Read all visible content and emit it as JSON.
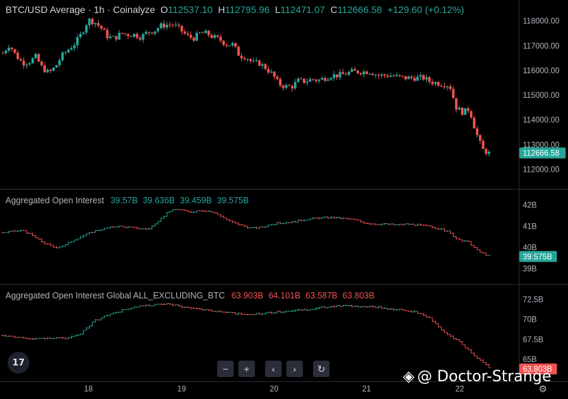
{
  "header": {
    "symbol": "BTC/USD Average · 1h · Coinalyze",
    "open_label": "O",
    "open": "112537.10",
    "high_label": "H",
    "high": "112795.96",
    "low_label": "L",
    "low": "112471.07",
    "close_label": "C",
    "close": "112666.58",
    "change": "+129.60 (+0.12%)"
  },
  "panel2": {
    "title": "Aggregated Open Interest",
    "values": [
      "39.57B",
      "39.636B",
      "39.459B",
      "39.575B"
    ]
  },
  "panel3": {
    "title": "Aggregated Open Interest Global ALL_EXCLUDING_BTC",
    "values": [
      "63.903B",
      "64.101B",
      "63.587B",
      "63.803B"
    ]
  },
  "watermark": "@ Doctor-Strange",
  "logo_text": "17",
  "nav": {
    "zoom_out": "−",
    "zoom_in": "+",
    "left": "‹",
    "right": "›",
    "reset": "↻"
  },
  "colors": {
    "up": "#26a69a",
    "down": "#ef5350",
    "background": "#000000",
    "grid_sep": "#2a2e39"
  },
  "chart_data": [
    {
      "type": "candlestick",
      "title": "BTC/USD Average · 1h · Coinalyze",
      "x_ticks": [
        "18",
        "19",
        "20",
        "21",
        "22"
      ],
      "y_ticks": [
        "118000.00",
        "117000.00",
        "116000.00",
        "115000.00",
        "114000.00",
        "113000.00",
        "112000.00"
      ],
      "ylim": [
        111600,
        118350
      ],
      "last_price": "112666.58",
      "path": [
        116700,
        117050,
        116600,
        116300,
        116350,
        116550,
        116100,
        115900,
        116150,
        116600,
        116850,
        117100,
        117500,
        118050,
        117950,
        117700,
        117350,
        117300,
        117500,
        117450,
        117450,
        117350,
        117550,
        117600,
        117800,
        117850,
        117850,
        117650,
        117400,
        117300,
        117500,
        117500,
        117350,
        117250,
        117050,
        117050,
        116600,
        116550,
        116300,
        116300,
        116100,
        115850,
        115450,
        115350,
        115350,
        115600,
        115550,
        115650,
        115600,
        115700,
        115800,
        115800,
        115850,
        115950,
        115950,
        115950,
        115950,
        115800,
        115800,
        115800,
        115750,
        115700,
        115700,
        115700,
        115700,
        115550,
        115500,
        115450,
        115400,
        114500,
        114300,
        114450,
        113500,
        112800,
        112650
      ]
    },
    {
      "type": "ohlc",
      "title": "Aggregated Open Interest",
      "y_ticks": [
        "42B",
        "41B",
        "40B",
        "39B"
      ],
      "ylim": [
        38.7,
        42.3
      ],
      "last_value": "39.575B",
      "path": [
        40.7,
        40.75,
        40.8,
        40.5,
        40.2,
        40.0,
        40.1,
        40.4,
        40.6,
        40.8,
        40.9,
        41.0,
        40.95,
        40.9,
        40.85,
        41.2,
        41.7,
        41.8,
        41.65,
        41.75,
        41.7,
        41.5,
        41.2,
        41.05,
        40.9,
        40.95,
        41.1,
        41.15,
        41.2,
        41.3,
        41.35,
        41.4,
        41.4,
        41.35,
        41.3,
        41.15,
        41.1,
        41.1,
        41.05,
        41.1,
        41.05,
        41.0,
        40.9,
        40.75,
        40.35,
        40.25,
        39.8,
        39.6
      ]
    },
    {
      "type": "ohlc",
      "title": "Aggregated Open Interest Global ALL_EXCLUDING_BTC",
      "y_ticks": [
        "72.5B",
        "70B",
        "67.5B",
        "65B"
      ],
      "ylim": [
        63.3,
        73.3
      ],
      "last_value": "63.803B",
      "path": [
        68.0,
        67.8,
        67.5,
        67.7,
        67.6,
        68.0,
        69.8,
        70.6,
        71.2,
        71.6,
        71.8,
        71.9,
        71.5,
        71.3,
        71.0,
        70.8,
        70.6,
        70.7,
        70.9,
        71.1,
        71.2,
        71.5,
        71.7,
        71.6,
        71.6,
        71.4,
        71.2,
        71.0,
        70.3,
        68.4,
        67.3,
        65.5,
        64.0
      ]
    }
  ]
}
